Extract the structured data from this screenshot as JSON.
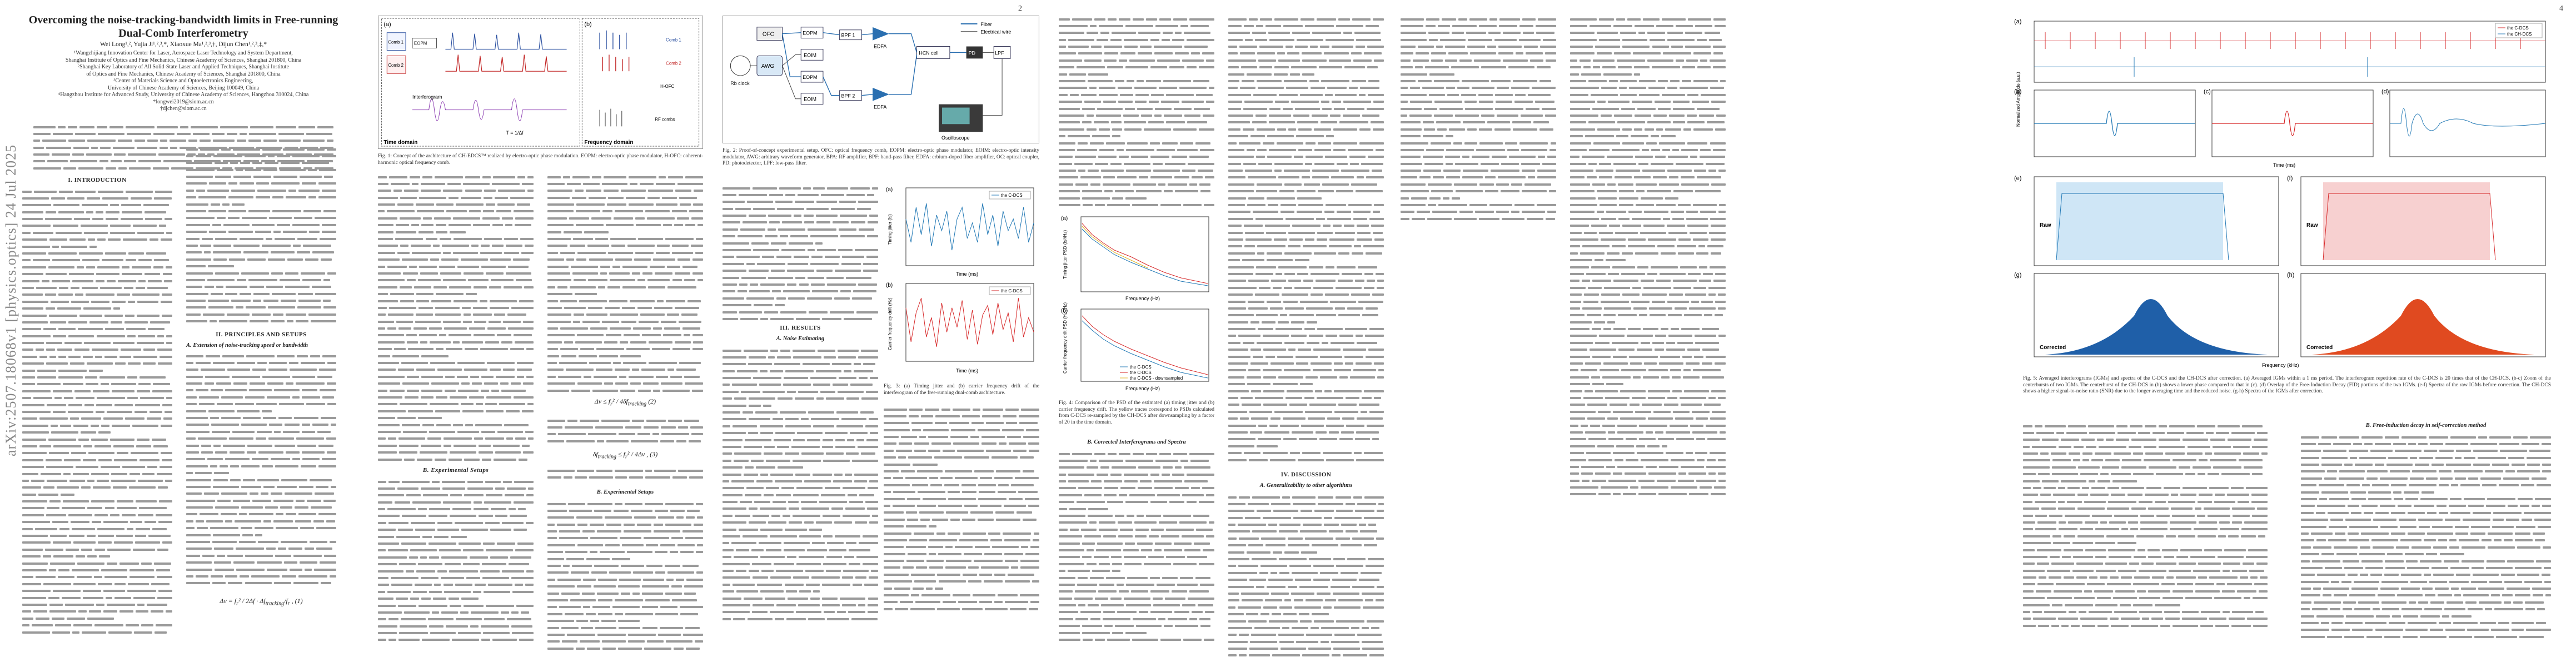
{
  "arxiv_id": "arXiv:2507.18068v1  [physics.optics]  24 Jul 2025",
  "page_numbers": [
    "2",
    "3",
    "4"
  ],
  "paper": {
    "title": "Overcoming the noise-tracking-bandwidth limits in Free-running Dual-Comb Interferometry",
    "authors": "Wei Long¹,², Yujia Ji¹,²,³,*, Xiaoxue Ma¹,²,³,†, Dijun Chen¹,²,³,‡,*",
    "affiliations": [
      "¹Wangzhijiang Innovation Center for Laser, Aerospace Laser Technology and System Department,",
      "Shanghai Institute of Optics and Fine Mechanics, Chinese Academy of Sciences, Shanghai 201800, China",
      "²Shanghai Key Laboratory of All Solid-State Laser and Applied Techniques, Shanghai Institute",
      "of Optics and Fine Mechanics, Chinese Academy of Sciences, Shanghai 201800, China",
      "³Center of Materials Science and Optoelectronics Engineering,",
      "University of Chinese Academy of Sciences, Beijing 100049, China",
      "⁴Hangzhou Institute for Advanced Study, University of Chinese Academy of Sciences, Hangzhou 310024, China",
      "*longwei2019@siom.ac.cn",
      "†djchen@siom.ac.cn"
    ]
  },
  "sections": {
    "intro": "I.   INTRODUCTION",
    "principles": "II.   PRINCIPLES AND SETUPS",
    "principles_a": "A.   Extension of noise-tracking speed or bandwidth",
    "principles_b": "B.   Experimental Setups",
    "results": "III.   RESULTS",
    "results_a": "A.   Noise Estimating",
    "results_b": "B.   Corrected Interferograms and Spectra",
    "discussion": "IV.   DISCUSSION",
    "discussion_a": "A.   Generalizability to other algorithms",
    "discussion_b": "B.   Free-induction decay in self-correction method"
  },
  "captions": {
    "fig1": "Fig. 1: Concept of the architecture of CH-EDCS™ realized by electro-optic phase modulation. EOPM: electro-optic phase modulator, H-OFC: coherent-harmonic optical frequency comb.",
    "fig2": "Fig. 2: Proof-of-concept experimental setup. OFC: optical frequency comb, EOPM: electro-optic phase modulator, EOIM: electro-optic intensity modulator, AWG: arbitrary waveform generator, BPA: RF amplifier, BPF: band-pass filter, EDFA: erbium-doped fiber amplifier, OC: optical coupler, PD: photodetector, LPF: low-pass filter.",
    "fig3": "Fig. 3: (a) Timing jitter and (b) carrier frequency drift of the interferogram of the free-running dual-comb architecture.",
    "fig4": "Fig. 4: Comparison of the PSD of the estimated (a) timing jitter and (b) carrier frequency drift. The yellow traces correspond to PSDs calculated from C-DCS re-sampled by the CH-DCS after downsampling by a factor of 20 in the time domain.",
    "fig5": "Fig. 5: Averaged interferograms (IGMs) and spectra of the C-DCS and the CH-DCS after correction. (a) Averaged IGMs within a 1 ms period. The interferogram repetition rate of the C-DCS is 20 times that of the CH-DCS. (b-c) Zoom of the centerbursts of two IGMs. The centerburst of the CH-DCS in (b) shows a lower phase compared to that in (c). (d) Overlap of the Free-Induction Decay (FID) portions of the two IGMs. (e-f) Spectra of the raw IGMs before correction. The CH-DCS shows a higher signal-to-noise ratio (SNR) due to the longer averaging time and the reduced noise. (g-h) Spectra of the IGMs after correction."
  },
  "fig_labels": {
    "fig1": {
      "panel_a": "(a)",
      "panel_b": "(b)",
      "comb1": "Comb 1",
      "comb2": "Comb 2",
      "time_domain": "Time domain",
      "freq_domain": "Frequency domain",
      "interferogram": "Interferogram",
      "hofc": "H-OFC",
      "rf_combs": "RF combs",
      "period": "T = 1/Δf",
      "eopm": "EOPM"
    },
    "fig2": {
      "awg": "AWG",
      "rb_clock": "Rb clock",
      "ofc": "OFC",
      "eopm": "EOPM",
      "eoim": "EOIM",
      "bpf1": "BPF 1",
      "bpf2": "BPF 2",
      "edfa": "EDFA",
      "hcn": "HCN cell",
      "pd": "PD",
      "lpf": "LPF",
      "osc": "Oscilloscope",
      "fiber": "Fiber",
      "elec": "Electrical wire"
    },
    "fig3": {
      "panel_a": "(a)",
      "panel_b": "(b)",
      "ylabel_a": "Timing jitter (fs)",
      "ylabel_b": "Carrier frequency drift (Hz)",
      "xlabel": "Time (ms)",
      "legend_a": "the C-DCS",
      "legend_b": "the C-DCS"
    },
    "fig4": {
      "panel_a": "(a)",
      "panel_b": "(b)",
      "ylabel_a": "Timing jitter PSD (fs²/Hz)",
      "ylabel_b": "Carrier frequency drift PSD (Hz²/Hz)",
      "xlabel": "Frequency (Hz)",
      "legend": [
        "the C-DCS",
        "the C-DCS",
        "the C-DCS - downsampled"
      ]
    },
    "fig5": {
      "panels": [
        "(a)",
        "(b)",
        "(c)",
        "(d)",
        "(e)",
        "(f)",
        "(g)",
        "(h)"
      ],
      "ylabel_top": "Normalized Amplitude (a.u.)",
      "xlabel_time": "Time (ms)",
      "xlabel_freq": "Frequency (kHz)",
      "raw": "Raw",
      "corrected": "Corrected",
      "legend_c": "the C-DCS",
      "legend_ch": "the CH-DCS"
    }
  },
  "chart_data": [
    {
      "type": "line",
      "title": "",
      "xlabel": "Time (ms)",
      "ylabel": "Timing jitter (fs)",
      "xlim": [
        0,
        50
      ],
      "series": [
        {
          "name": "the C-DCS",
          "x": [
            0,
            2,
            4,
            6,
            8,
            10,
            12,
            14,
            16,
            18,
            20,
            22,
            24,
            26,
            28,
            30,
            32,
            34,
            36,
            38,
            40,
            42,
            44,
            46,
            48,
            50
          ],
          "values": [
            2,
            -4,
            5,
            -2,
            6,
            -5,
            3,
            -1,
            4,
            -6,
            2,
            5,
            -3,
            1,
            -4,
            6,
            -2,
            3,
            -5,
            4,
            -1,
            2,
            -3,
            5,
            -4,
            1
          ]
        }
      ]
    },
    {
      "type": "line",
      "title": "",
      "xlabel": "Time (ms)",
      "ylabel": "Carrier frequency drift (Hz)",
      "xlim": [
        0,
        50
      ],
      "series": [
        {
          "name": "the C-DCS",
          "x": [
            0,
            2,
            4,
            6,
            8,
            10,
            12,
            14,
            16,
            18,
            20,
            22,
            24,
            26,
            28,
            30,
            32,
            34,
            36,
            38,
            40,
            42,
            44,
            46,
            48,
            50
          ],
          "values": [
            30,
            -40,
            20,
            50,
            -30,
            10,
            -50,
            40,
            -20,
            30,
            -10,
            45,
            -35,
            25,
            -45,
            15,
            35,
            -25,
            40,
            -15,
            20,
            -40,
            50,
            -30,
            10,
            -20
          ]
        }
      ]
    }
  ]
}
